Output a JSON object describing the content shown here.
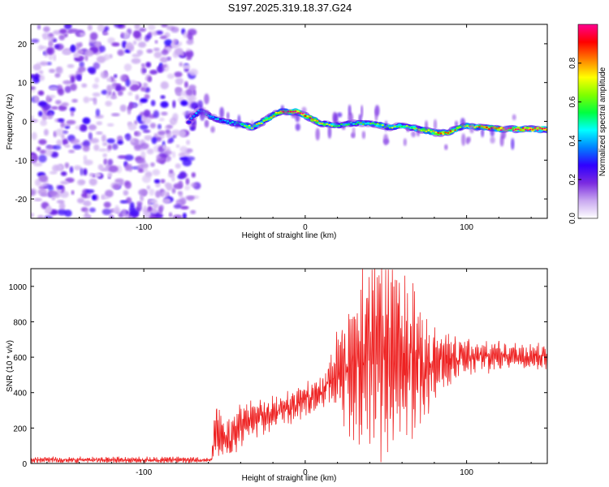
{
  "title": "S197.2025.319.18.37.G24",
  "chart_data": [
    {
      "type": "heatmap",
      "xlabel": "Height of straight line (km)",
      "ylabel": "Frequency (Hz)",
      "xlim": [
        -170,
        150
      ],
      "ylim": [
        -25,
        25
      ],
      "xticks": [
        -100,
        0,
        100
      ],
      "yticks": [
        -20,
        -10,
        0,
        10,
        20
      ],
      "colorbar": {
        "label": "Normalized spectral amplitude",
        "range": [
          0,
          1
        ],
        "ticks": [
          0.0,
          0.2,
          0.4,
          0.6,
          0.8
        ],
        "colors": [
          "#ffffff",
          "#c9a8f0",
          "#7b2be0",
          "#3000ff",
          "#0080ff",
          "#00ffff",
          "#00ff40",
          "#80ff00",
          "#ffff00",
          "#ff8000",
          "#ff0000",
          "#ff0090"
        ]
      },
      "noise_region_x": [
        -170,
        -67
      ],
      "ridge": {
        "x": [
          -72,
          -65,
          -58,
          -50,
          -44,
          -38,
          -33,
          -28,
          -22,
          -16,
          -10,
          -5,
          0,
          5,
          10,
          16,
          22,
          28,
          34,
          40,
          46,
          52,
          58,
          64,
          70,
          76,
          82,
          88,
          94,
          98,
          104,
          110,
          116,
          122,
          130,
          140,
          150
        ],
        "y": [
          0,
          3,
          1,
          0,
          -0.5,
          -1,
          -1.5,
          -0.5,
          1,
          2.5,
          2.5,
          2.5,
          1.5,
          0.5,
          -0.5,
          -1,
          -1,
          -0.5,
          -0.5,
          -0.5,
          -1,
          -1.5,
          -1.2,
          -1.5,
          -2,
          -2.5,
          -3,
          -3,
          -2,
          -1,
          -1.5,
          -1.5,
          -1.8,
          -2,
          -2,
          -2,
          -2
        ],
        "peak_amplitude": [
          0.35,
          0.45,
          0.45,
          0.4,
          0.5,
          0.6,
          0.65,
          0.7,
          0.7,
          0.8,
          0.9,
          0.95,
          0.9,
          0.8,
          0.7,
          0.6,
          0.55,
          0.5,
          0.55,
          0.55,
          0.6,
          0.65,
          0.6,
          0.6,
          0.7,
          0.75,
          0.85,
          0.85,
          0.75,
          0.7,
          0.75,
          0.8,
          0.85,
          0.9,
          0.95,
          0.95,
          0.95
        ]
      }
    },
    {
      "type": "line",
      "xlabel": "Height of straight line (km)",
      "ylabel": "SNR (10 * v/v)",
      "xlim": [
        -170,
        150
      ],
      "ylim": [
        0,
        1100
      ],
      "xticks": [
        -100,
        0,
        100
      ],
      "yticks": [
        0,
        200,
        400,
        600,
        800,
        1000
      ],
      "color": "#ee2222",
      "envelope": {
        "x": [
          -170,
          -150,
          -120,
          -90,
          -70,
          -58,
          -56,
          -53,
          -50,
          -45,
          -40,
          -30,
          -20,
          -10,
          0,
          10,
          15,
          20,
          25,
          30,
          35,
          40,
          45,
          50,
          55,
          60,
          65,
          70,
          75,
          80,
          85,
          90,
          95,
          100,
          110,
          120,
          130,
          140,
          150
        ],
        "mean": [
          20,
          20,
          20,
          20,
          20,
          20,
          180,
          150,
          120,
          150,
          220,
          250,
          280,
          320,
          360,
          410,
          450,
          520,
          560,
          580,
          590,
          600,
          600,
          610,
          600,
          590,
          590,
          580,
          570,
          560,
          570,
          580,
          590,
          600,
          600,
          610,
          610,
          610,
          600
        ],
        "amplitude": [
          15,
          15,
          15,
          15,
          15,
          10,
          150,
          120,
          90,
          90,
          110,
          90,
          80,
          80,
          80,
          80,
          100,
          200,
          300,
          350,
          400,
          450,
          500,
          500,
          450,
          420,
          380,
          350,
          250,
          200,
          150,
          130,
          110,
          100,
          80,
          70,
          60,
          60,
          60
        ]
      }
    }
  ]
}
